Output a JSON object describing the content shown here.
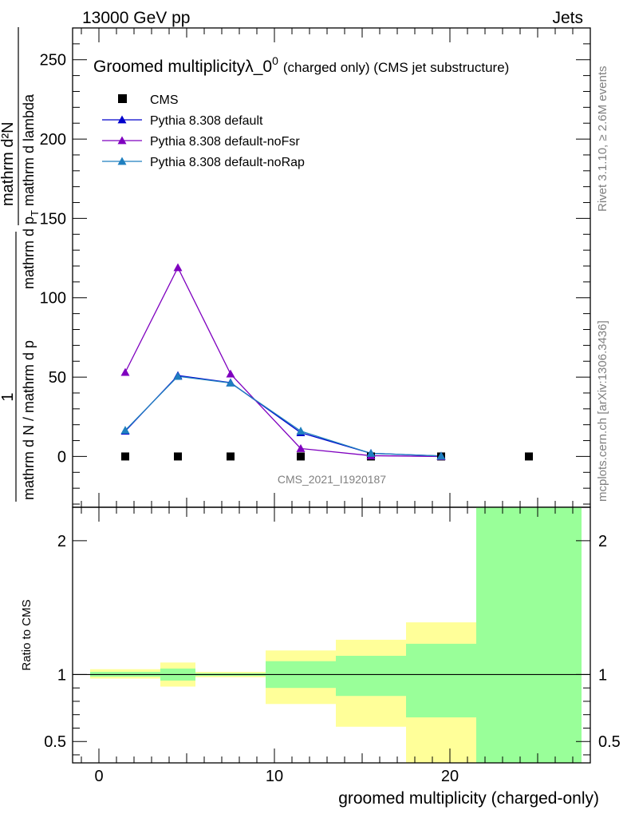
{
  "header": {
    "left": "13000 GeV pp",
    "right": "Jets"
  },
  "side_labels": {
    "rivet": "Rivet 3.1.10, ≥ 2.6M events",
    "mcplots": "mcplots.cern.ch [arXiv:1306.3436]"
  },
  "chart_data": [
    {
      "type": "scatter",
      "title": "Groomed multiplicityλ_0",
      "title_sup": "0",
      "title_suffix": "(charged only) (CMS jet substructure)",
      "watermark": "CMS_2021_I1920187",
      "ylabel": {
        "prefix": "1",
        "prefix_den": "mathrm d N / mathrm d p",
        "numerator": "mathrm d²N",
        "denominator": "mathrm d p",
        "denominator_tail": " mathrm d lambda",
        "subscript": "T"
      },
      "ylim": [
        -32,
        270
      ],
      "yticks": [
        0,
        50,
        100,
        150,
        200,
        250
      ],
      "xlim": [
        -1.5,
        28
      ],
      "series": [
        {
          "name": "CMS",
          "color": "#000000",
          "marker": "square",
          "x": [
            1.5,
            4.5,
            7.5,
            11.5,
            15.5,
            19.5,
            24.5
          ],
          "y": [
            0,
            0,
            0,
            0,
            0,
            0,
            0
          ]
        },
        {
          "name": "Pythia 8.308 default",
          "color": "#0000cc",
          "marker": "triangle",
          "x": [
            1.5,
            4.5,
            7.5,
            11.5,
            15.5,
            19.5
          ],
          "y": [
            16,
            51,
            46.5,
            15,
            2,
            0.3
          ]
        },
        {
          "name": "Pythia 8.308 default-noFsr",
          "color": "#7f00bf",
          "marker": "triangle",
          "x": [
            1.5,
            4.5,
            7.5,
            11.5,
            15.5,
            19.5
          ],
          "y": [
            53,
            119,
            52,
            5,
            0.5,
            0
          ]
        },
        {
          "name": "Pythia 8.308 default-noRap",
          "color": "#1f7fbf",
          "marker": "triangle",
          "x": [
            1.5,
            4.5,
            7.5,
            11.5,
            15.5,
            19.5
          ],
          "y": [
            16.5,
            50.5,
            46.3,
            16,
            2,
            0.3
          ]
        }
      ]
    },
    {
      "type": "area",
      "ylabel": "Ratio to CMS",
      "xlabel": "groomed multiplicity (charged-only)",
      "ylim": [
        0.34,
        2.25
      ],
      "yticks": [
        0.5,
        1,
        2
      ],
      "xlim": [
        -1.5,
        28
      ],
      "xticks": [
        0,
        10,
        20
      ],
      "reference": 1,
      "bands": [
        {
          "name": "outer",
          "color": "#ffff99",
          "bins": [
            [
              -0.5,
              3.5,
              0.97,
              1.04
            ],
            [
              3.5,
              5.5,
              0.91,
              1.09
            ],
            [
              5.5,
              9.5,
              0.98,
              1.02
            ],
            [
              9.5,
              13.5,
              0.78,
              1.18
            ],
            [
              13.5,
              17.5,
              0.61,
              1.26
            ],
            [
              17.5,
              21.5,
              0.34,
              1.39
            ],
            [
              21.5,
              27.5,
              0.34,
              2.25
            ]
          ]
        },
        {
          "name": "inner",
          "color": "#99ff99",
          "bins": [
            [
              -0.5,
              3.5,
              0.985,
              1.02
            ],
            [
              3.5,
              5.5,
              0.955,
              1.045
            ],
            [
              5.5,
              9.5,
              0.99,
              1.01
            ],
            [
              9.5,
              13.5,
              0.9,
              1.1
            ],
            [
              13.5,
              17.5,
              0.84,
              1.14
            ],
            [
              17.5,
              21.5,
              0.68,
              1.23
            ],
            [
              21.5,
              27.5,
              0.34,
              2.25
            ]
          ]
        }
      ]
    }
  ]
}
